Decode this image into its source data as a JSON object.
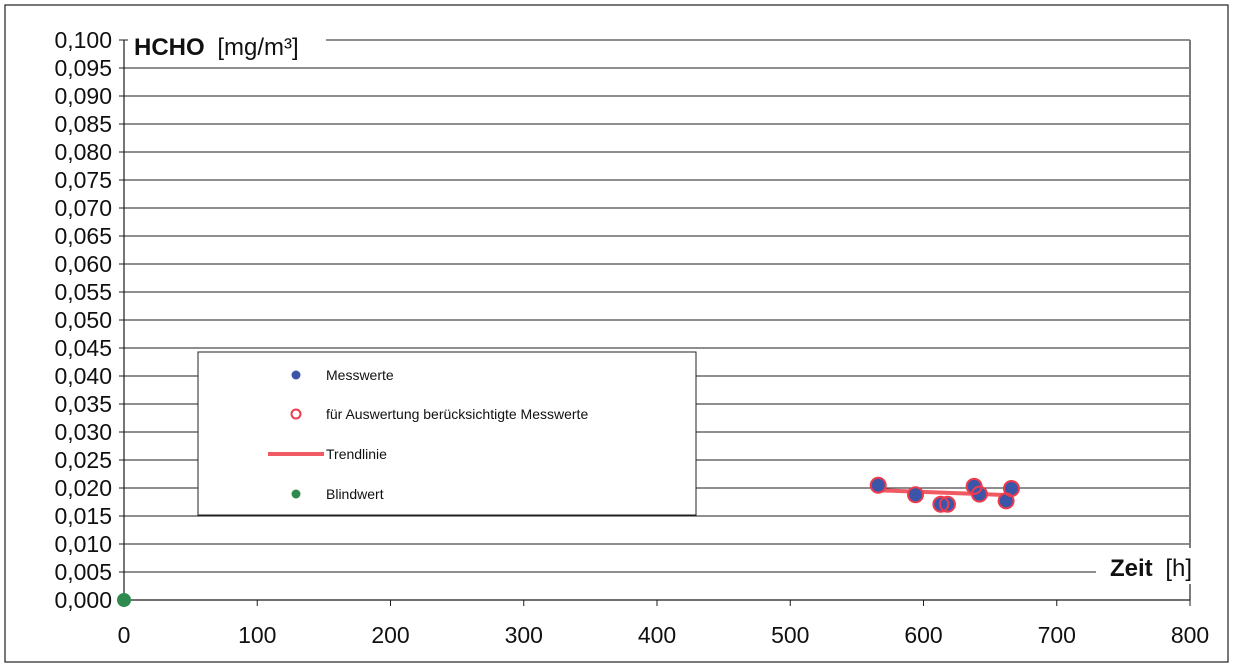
{
  "chart_data": {
    "type": "scatter",
    "title": "",
    "ylabel_bold": "HCHO",
    "ylabel_unit": "[mg/m³]",
    "xlabel_bold": "Zeit",
    "xlabel_unit": "[h]",
    "xlim": [
      0,
      800
    ],
    "ylim": [
      0,
      0.1
    ],
    "x_ticks": [
      "0",
      "100",
      "200",
      "300",
      "400",
      "500",
      "600",
      "700",
      "800"
    ],
    "y_ticks": [
      "0,000",
      "0,005",
      "0,010",
      "0,015",
      "0,020",
      "0,025",
      "0,030",
      "0,035",
      "0,040",
      "0,045",
      "0,050",
      "0,055",
      "0,060",
      "0,065",
      "0,070",
      "0,075",
      "0,080",
      "0,085",
      "0,090",
      "0,095",
      "0,100"
    ],
    "grid": "horizontal",
    "legend_placement": "left-center",
    "colors": {
      "messwerte": "#3b55a8",
      "considered_ring": "#ee3b4e",
      "trend": "#f05a62",
      "blindwert": "#2f8a4d"
    },
    "series": [
      {
        "name": "Messwerte",
        "points": [
          {
            "x": 566,
            "y": 0.0205
          },
          {
            "x": 594,
            "y": 0.0188
          },
          {
            "x": 613,
            "y": 0.0171
          },
          {
            "x": 618,
            "y": 0.0171
          },
          {
            "x": 638,
            "y": 0.0203
          },
          {
            "x": 642,
            "y": 0.0189
          },
          {
            "x": 662,
            "y": 0.0177
          },
          {
            "x": 666,
            "y": 0.0199
          }
        ]
      },
      {
        "name": "für Auswertung berücksichtigte Messwerte",
        "points": [
          {
            "x": 566,
            "y": 0.0205
          },
          {
            "x": 594,
            "y": 0.0188
          },
          {
            "x": 613,
            "y": 0.0171
          },
          {
            "x": 618,
            "y": 0.0171
          },
          {
            "x": 638,
            "y": 0.0203
          },
          {
            "x": 642,
            "y": 0.0189
          },
          {
            "x": 662,
            "y": 0.0177
          },
          {
            "x": 666,
            "y": 0.0199
          }
        ]
      },
      {
        "name": "Trendlinie",
        "line": [
          {
            "x": 566,
            "y": 0.0196
          },
          {
            "x": 666,
            "y": 0.0187
          }
        ]
      },
      {
        "name": "Blindwert",
        "points": [
          {
            "x": 0,
            "y": 0.0
          }
        ]
      }
    ],
    "legend": {
      "items": [
        "Messwerte",
        "für Auswertung berücksichtigte Messwerte",
        "Trendlinie",
        "Blindwert"
      ]
    }
  }
}
